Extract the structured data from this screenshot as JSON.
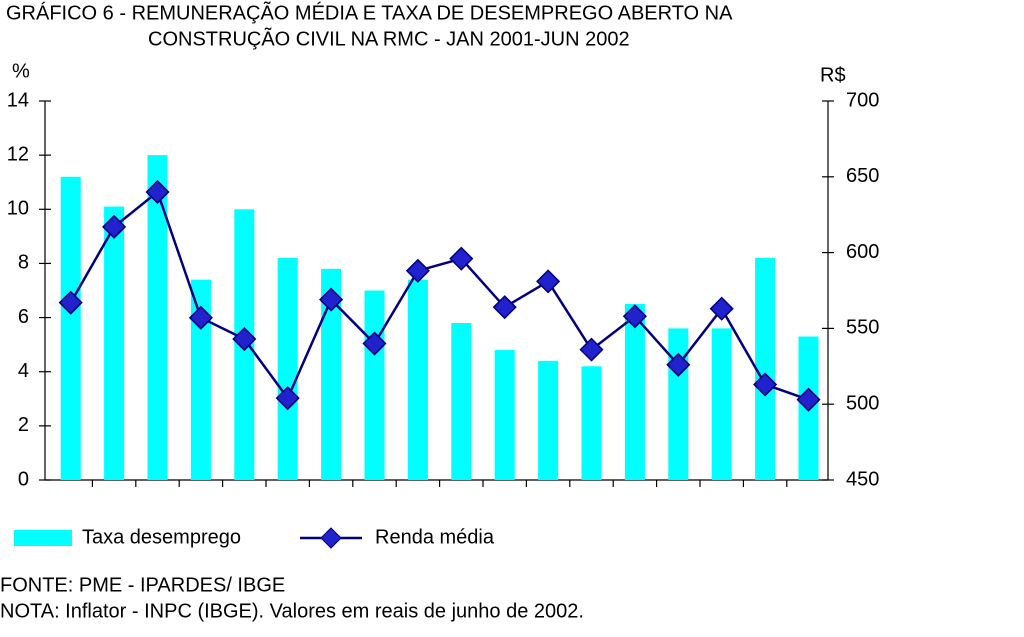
{
  "chart_data": {
    "type": "bar-line",
    "title": [
      "GRÁFICO 6 - REMUNERAÇÃO MÉDIA E TAXA DE DESEMPREGO ABERTO NA",
      "CONSTRUÇÃO CIVIL  NA RMC - JAN 2001-JUN 2002"
    ],
    "y_label": "%",
    "y2_label": "R$",
    "categories": [
      null,
      null,
      null,
      null,
      null,
      null,
      null,
      null,
      null,
      null,
      null,
      null,
      null,
      null,
      null,
      null,
      null,
      null
    ],
    "series": [
      {
        "name": "Taxa desemprego",
        "color": "#00ffff",
        "values": [
          11.2,
          10.1,
          12.0,
          7.4,
          10.0,
          8.2,
          7.8,
          7.0,
          7.4,
          5.8,
          4.8,
          4.4,
          4.2,
          6.5,
          5.6,
          5.6,
          8.2,
          5.3
        ]
      },
      {
        "name": "Renda média",
        "color": "#000080",
        "marker_color": "#2222cc",
        "axis": "y2",
        "values": [
          567,
          617,
          640,
          557,
          543,
          504,
          569,
          540,
          588,
          596,
          564,
          581,
          536,
          558,
          526,
          563,
          513,
          503
        ]
      }
    ],
    "ylim": [
      0,
      14
    ],
    "yticks": [
      0,
      2,
      4,
      6,
      8,
      10,
      12,
      14
    ],
    "y2lim": [
      450,
      700
    ],
    "y2ticks": [
      450,
      500,
      550,
      600,
      650,
      700
    ],
    "footnotes": [
      "FONTE: PME - IPARDES/ IBGE",
      "NOTA: Inflator - INPC (IBGE). Valores em reais de junho de 2002."
    ]
  }
}
